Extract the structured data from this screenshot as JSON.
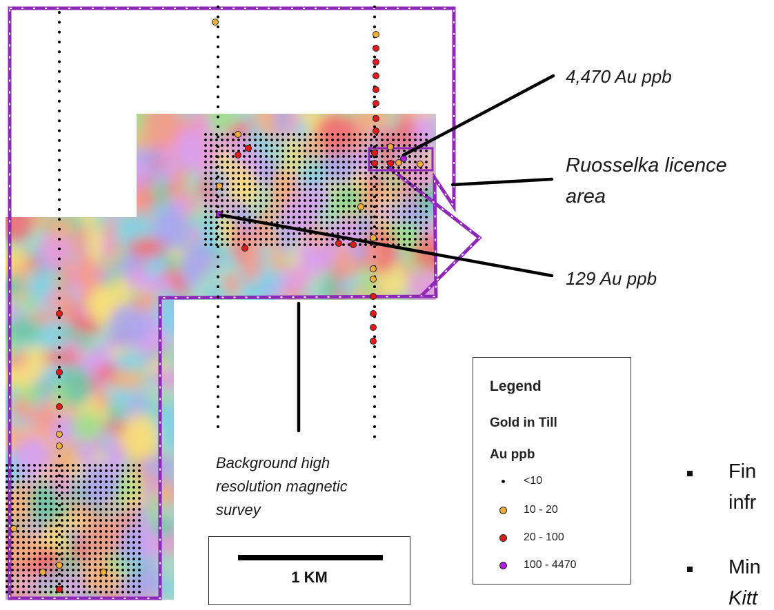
{
  "callouts": {
    "au_4470": "4,470 Au ppb",
    "licence_line1": "Ruosselka licence",
    "licence_line2": "area",
    "au_129": "129 Au ppb",
    "background_line1": "Background high",
    "background_line2": "resolution magnetic",
    "background_line3": "survey"
  },
  "legend": {
    "title": "Legend",
    "subtitle": "Gold in Till",
    "unit": "Au ppb",
    "classes": [
      {
        "label": "<10",
        "color": "#000000"
      },
      {
        "label": "10 - 20",
        "color": "#f0ad3c"
      },
      {
        "label": "20 - 100",
        "color": "#e41a1a"
      },
      {
        "label": "100 - 4470",
        "color": "#b21ee6"
      }
    ]
  },
  "scale": {
    "label": "1 KM"
  },
  "side_bullets": [
    {
      "text": "Fin"
    },
    {
      "text": "infr"
    },
    {
      "text": "Min"
    },
    {
      "text": "Kitt"
    }
  ],
  "colors": {
    "licence_boundary": "#8e28b8",
    "sample_line": "#000000",
    "low_gold": "#000000",
    "mid_gold": "#f0ad3c",
    "high_gold": "#e41a1a",
    "very_high_gold": "#b21ee6"
  }
}
